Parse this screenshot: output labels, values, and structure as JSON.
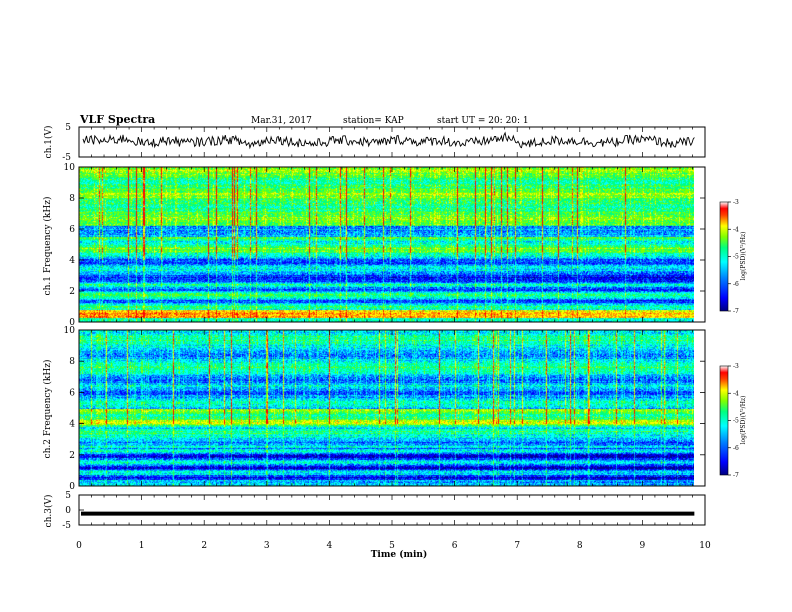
{
  "header": {
    "title": "VLF Spectra",
    "date": "Mar.31, 2017",
    "station": "station= KAP",
    "start": "start UT =  20: 20: 1"
  },
  "colors": {
    "ink": "#000000",
    "colormap": [
      "#00008c",
      "#0000ff",
      "#0080ff",
      "#00ffff",
      "#00ff80",
      "#80ff00",
      "#ffff00",
      "#ff8000",
      "#ff0000",
      "#ffffff"
    ]
  },
  "chart_data": [
    {
      "type": "line",
      "panel": "ch1-waveform",
      "ylabel": "ch.1(V)",
      "ylim": [
        -5,
        5
      ],
      "yticks": [
        "5",
        "-5"
      ],
      "x_range": [
        0,
        9.83
      ],
      "series": [
        {
          "values": [
            1.5,
            0.5,
            2.0,
            -1.0,
            1.0,
            -0.5,
            0.5,
            1.5,
            -1.5,
            2.0,
            0.0,
            -1.0,
            1.0,
            0.5,
            -0.5,
            1.5,
            0.0,
            1.0,
            -1.0,
            0.5,
            2.5,
            -1.5,
            0.5,
            1.0,
            0.0,
            -0.5,
            1.5,
            1.0,
            -1.0,
            0.5
          ]
        }
      ]
    },
    {
      "type": "heatmap",
      "panel": "ch1-spectrogram",
      "ylabel": "ch.1 Frequency (kHz)",
      "yticks": [
        "10",
        "8",
        "6",
        "4",
        "2",
        "0"
      ],
      "ylim": [
        0,
        10
      ],
      "x_range": [
        0,
        9.83
      ],
      "colorbar": {
        "label": "log(PSD)(V²/Hz)",
        "ticks": [
          "-3",
          "-4",
          "-5",
          "-6",
          "-7"
        ],
        "range": [
          -7,
          -3
        ]
      }
    },
    {
      "type": "heatmap",
      "panel": "ch2-spectrogram",
      "ylabel": "ch.2 Frequency (kHz)",
      "yticks": [
        "10",
        "8",
        "6",
        "4",
        "2",
        "0"
      ],
      "ylim": [
        0,
        10
      ],
      "x_range": [
        0,
        9.83
      ],
      "colorbar": {
        "label": "log(PSD)(V²/Hz)",
        "ticks": [
          "-3",
          "-4",
          "-5",
          "-6",
          "-7"
        ],
        "range": [
          -7,
          -3
        ]
      }
    },
    {
      "type": "line",
      "panel": "ch3-waveform",
      "ylabel": "ch.3(V)",
      "ylim": [
        -5,
        5
      ],
      "yticks": [
        "5",
        "0",
        "-5"
      ],
      "x_range": [
        0,
        9.83
      ],
      "series": [
        {
          "values": [
            -1.2,
            -1.2
          ]
        }
      ]
    }
  ],
  "xaxis": {
    "label": "Time (min)",
    "ticks": [
      "0",
      "1",
      "2",
      "3",
      "4",
      "5",
      "6",
      "7",
      "8",
      "9",
      "10"
    ],
    "range": [
      0,
      10
    ]
  }
}
